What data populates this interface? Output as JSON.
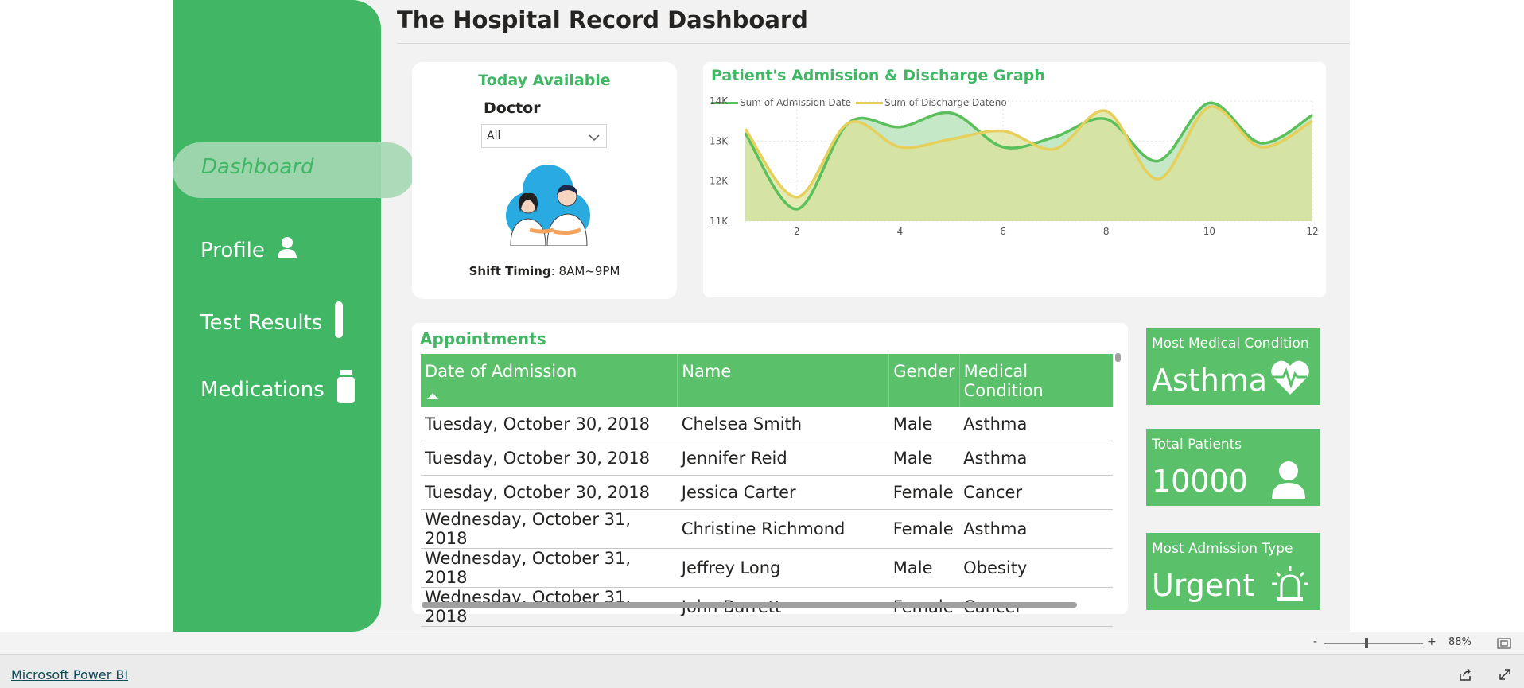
{
  "page": {
    "title": "The Hospital Record Dashboard"
  },
  "nav": {
    "dashboard": "Dashboard",
    "profile": "Profile",
    "test_results": "Test Results",
    "medications": "Medications"
  },
  "doctor_card": {
    "title": "Today Available",
    "filter_label": "Doctor",
    "filter_value": "All",
    "shift_label": "Shift Timing",
    "shift_value": ": 8AM~9PM"
  },
  "chart_data": {
    "type": "area",
    "title": "Patient's Admission & Discharge Graph",
    "x": [
      1,
      2,
      3,
      4,
      5,
      6,
      7,
      8,
      9,
      10,
      11,
      12
    ],
    "x_ticks": [
      "2",
      "4",
      "6",
      "8",
      "10",
      "12"
    ],
    "y_ticks": [
      "11K",
      "12K",
      "13K",
      "14K"
    ],
    "ylim": [
      11000,
      14000
    ],
    "xlim": [
      1,
      12
    ],
    "grid": true,
    "legend": "top-left",
    "series": [
      {
        "name": "Sum of Admission Date",
        "values": [
          13200,
          11300,
          13450,
          13350,
          13700,
          12850,
          13100,
          13550,
          12500,
          13950,
          12950,
          13650
        ],
        "color": "#5bbf5b"
      },
      {
        "name": "Sum of Discharge Dateno",
        "values": [
          13300,
          11600,
          13450,
          12850,
          13050,
          13250,
          12800,
          13750,
          12050,
          13850,
          12850,
          13500
        ],
        "color": "#e6cf5a"
      }
    ]
  },
  "appointments": {
    "title": "Appointments",
    "columns": [
      "Date of Admission",
      "Name",
      "Gender",
      "Medical Condition"
    ],
    "rows": [
      [
        "Tuesday, October 30, 2018",
        "Chelsea Smith",
        "Male",
        "Asthma"
      ],
      [
        "Tuesday, October 30, 2018",
        "Jennifer Reid",
        "Male",
        "Asthma"
      ],
      [
        "Tuesday, October 30, 2018",
        "Jessica Carter",
        "Female",
        "Cancer"
      ],
      [
        "Wednesday, October 31, 2018",
        "Christine Richmond",
        "Female",
        "Asthma"
      ],
      [
        "Wednesday, October 31, 2018",
        "Jeffrey Long",
        "Male",
        "Obesity"
      ],
      [
        "Wednesday, October 31, 2018",
        "John Barrett",
        "Female",
        "Cancer"
      ]
    ]
  },
  "kpis": {
    "condition": {
      "label": "Most Medical Condition",
      "value": "Asthma"
    },
    "patients": {
      "label": "Total Patients",
      "value": "10000"
    },
    "admission": {
      "label": "Most Admission Type",
      "value": "Urgent"
    }
  },
  "statusbar": {
    "zoom": "88%",
    "minus": "-",
    "plus": "+"
  },
  "footer": {
    "brand_link": "Microsoft Power BI"
  },
  "colors": {
    "accent": "#41b766",
    "kpi": "#5bc06a",
    "header": "#5bc06a"
  }
}
